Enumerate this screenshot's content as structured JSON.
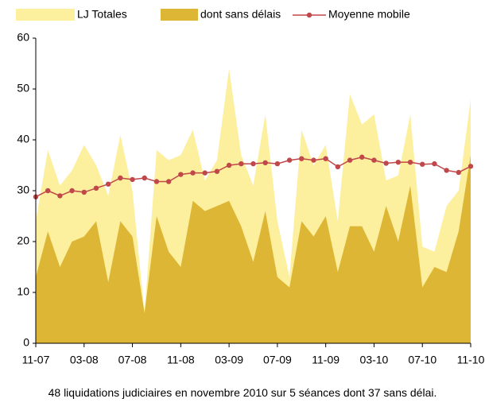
{
  "chart_data": {
    "type": "area",
    "caption": "48 liquidations judiciaires en novembre 2010 sur 5 séances dont 37 sans délai.",
    "categories": [
      "11-07",
      null,
      null,
      null,
      "03-08",
      null,
      null,
      null,
      "07-08",
      null,
      null,
      null,
      "11-08",
      null,
      null,
      null,
      "03-09",
      null,
      null,
      null,
      "07-09",
      null,
      null,
      null,
      "11-09",
      null,
      null,
      null,
      "03-10",
      null,
      null,
      null,
      "07-10",
      null,
      null,
      null,
      "11-10"
    ],
    "series": [
      {
        "name": "LJ Totales",
        "kind": "area",
        "color": "#fcef9e",
        "values": [
          24,
          38,
          31,
          34,
          39,
          35,
          29,
          41,
          30,
          6,
          38,
          36,
          37,
          42,
          32,
          36,
          54,
          37,
          31,
          45,
          24,
          13,
          42,
          35,
          39,
          24,
          49,
          43,
          45,
          32,
          33,
          45,
          19,
          18,
          27,
          30,
          48
        ]
      },
      {
        "name": "dont sans délais",
        "kind": "area",
        "color": "#deb635",
        "values": [
          13,
          22,
          15,
          20,
          21,
          24,
          12,
          24,
          21,
          6,
          25,
          18,
          15,
          28,
          26,
          27,
          28,
          23,
          16,
          26,
          13,
          11,
          24,
          21,
          25,
          14,
          23,
          23,
          18,
          27,
          20,
          31,
          11,
          15,
          14,
          22,
          37
        ]
      },
      {
        "name": "Moyenne mobile",
        "kind": "line",
        "color": "#c0474a",
        "values": [
          28.8,
          30,
          29,
          30,
          29.7,
          30.5,
          31.3,
          32.5,
          32.2,
          32.5,
          31.8,
          31.8,
          33.2,
          33.5,
          33.5,
          33.8,
          35,
          35.3,
          35.3,
          35.5,
          35.3,
          36,
          36.3,
          36,
          36.3,
          34.7,
          36,
          36.6,
          36,
          35.4,
          35.6,
          35.6,
          35.2,
          35.3,
          34,
          33.6,
          34.8
        ]
      }
    ],
    "ylim": [
      0,
      60
    ],
    "yticks": [
      0,
      10,
      20,
      30,
      40,
      50,
      60
    ],
    "grid": false
  }
}
